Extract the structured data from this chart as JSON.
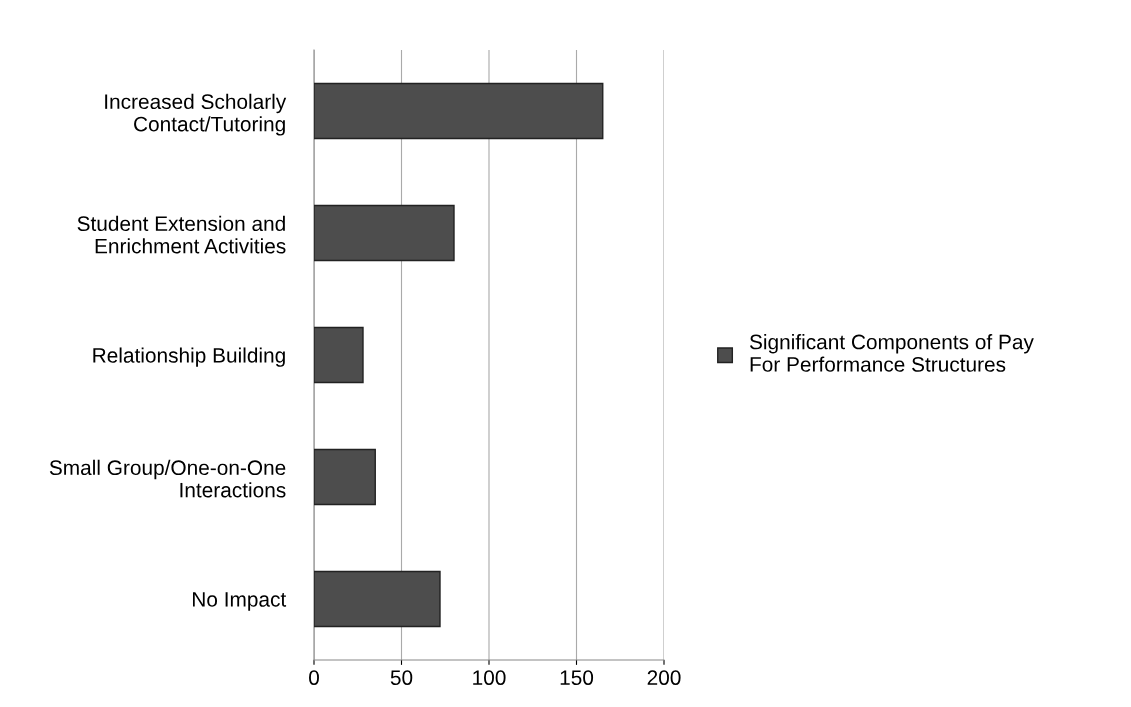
{
  "chart_data": {
    "type": "bar",
    "orientation": "horizontal",
    "categories": [
      "Increased Scholarly\nContact/Tutoring",
      "Student Extension and\nEnrichment Activities",
      "Relationship Building",
      "Small Group/One-on-One\nInteractions",
      "No Impact"
    ],
    "series": [
      {
        "name": "Significant Components of Pay\nFor Performance Structures",
        "color": "#4d4d4d",
        "values": [
          165,
          80,
          28,
          35,
          72
        ]
      }
    ],
    "xlim": [
      0,
      200
    ],
    "xticks": [
      0,
      50,
      100,
      150,
      200
    ],
    "grid": "x",
    "legend": "right"
  }
}
